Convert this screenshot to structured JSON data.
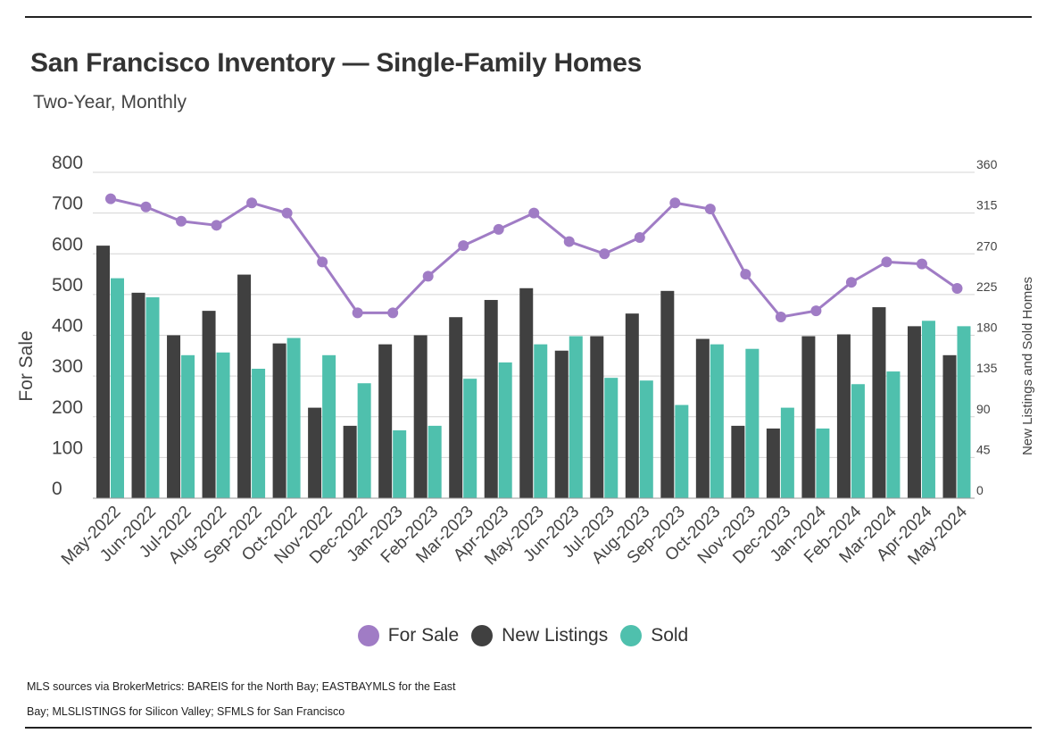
{
  "title": "San Francisco Inventory — Single-Family Homes",
  "subtitle": "Two-Year, Monthly",
  "source": {
    "line1": "MLS sources via BrokerMetrics: BAREIS for the North Bay; EASTBAYMLS for the East",
    "line2": "Bay; MLSLISTINGS for Silicon Valley; SFMLS for San Francisco"
  },
  "colors": {
    "for_sale": "#a07cc5",
    "new_listings": "#404040",
    "sold": "#4fc0ad"
  },
  "chart_data": {
    "type": "bar",
    "categories": [
      "May-2022",
      "Jun-2022",
      "Jul-2022",
      "Aug-2022",
      "Sep-2022",
      "Oct-2022",
      "Nov-2022",
      "Dec-2022",
      "Jan-2023",
      "Feb-2023",
      "Mar-2023",
      "Apr-2023",
      "May-2023",
      "Jun-2023",
      "Jul-2023",
      "Aug-2023",
      "Sep-2023",
      "Oct-2023",
      "Nov-2023",
      "Dec-2023",
      "Jan-2024",
      "Feb-2024",
      "Mar-2024",
      "Apr-2024",
      "May-2024"
    ],
    "ylabel": "For Sale",
    "y2label": "New Listings and Sold Homes",
    "ylim": [
      0,
      800
    ],
    "y2lim": [
      0,
      360
    ],
    "yticks": [
      "0",
      "100",
      "200",
      "300",
      "400",
      "500",
      "600",
      "700",
      "800"
    ],
    "y2ticks": [
      "0",
      "45",
      "90",
      "135",
      "180",
      "225",
      "270",
      "315",
      "360"
    ],
    "grid": true,
    "legend_position": "bottom",
    "series": [
      {
        "name": "For Sale",
        "type": "line",
        "axis": "left",
        "values": [
          735,
          715,
          680,
          670,
          725,
          700,
          580,
          455,
          455,
          545,
          620,
          660,
          700,
          630,
          600,
          640,
          725,
          710,
          550,
          445,
          460,
          530,
          580,
          575,
          515
        ]
      },
      {
        "name": "New Listings",
        "type": "bar",
        "axis": "right",
        "values": [
          279,
          227,
          180,
          207,
          247,
          171,
          100,
          80,
          170,
          180,
          200,
          219,
          232,
          163,
          179,
          204,
          229,
          176,
          80,
          77,
          179,
          181,
          211,
          190,
          158
        ]
      },
      {
        "name": "Sold",
        "type": "bar",
        "axis": "right",
        "values": [
          243,
          222,
          158,
          161,
          143,
          177,
          158,
          127,
          75,
          80,
          132,
          150,
          170,
          179,
          133,
          130,
          103,
          170,
          165,
          100,
          77,
          126,
          140,
          196,
          190
        ]
      }
    ]
  }
}
